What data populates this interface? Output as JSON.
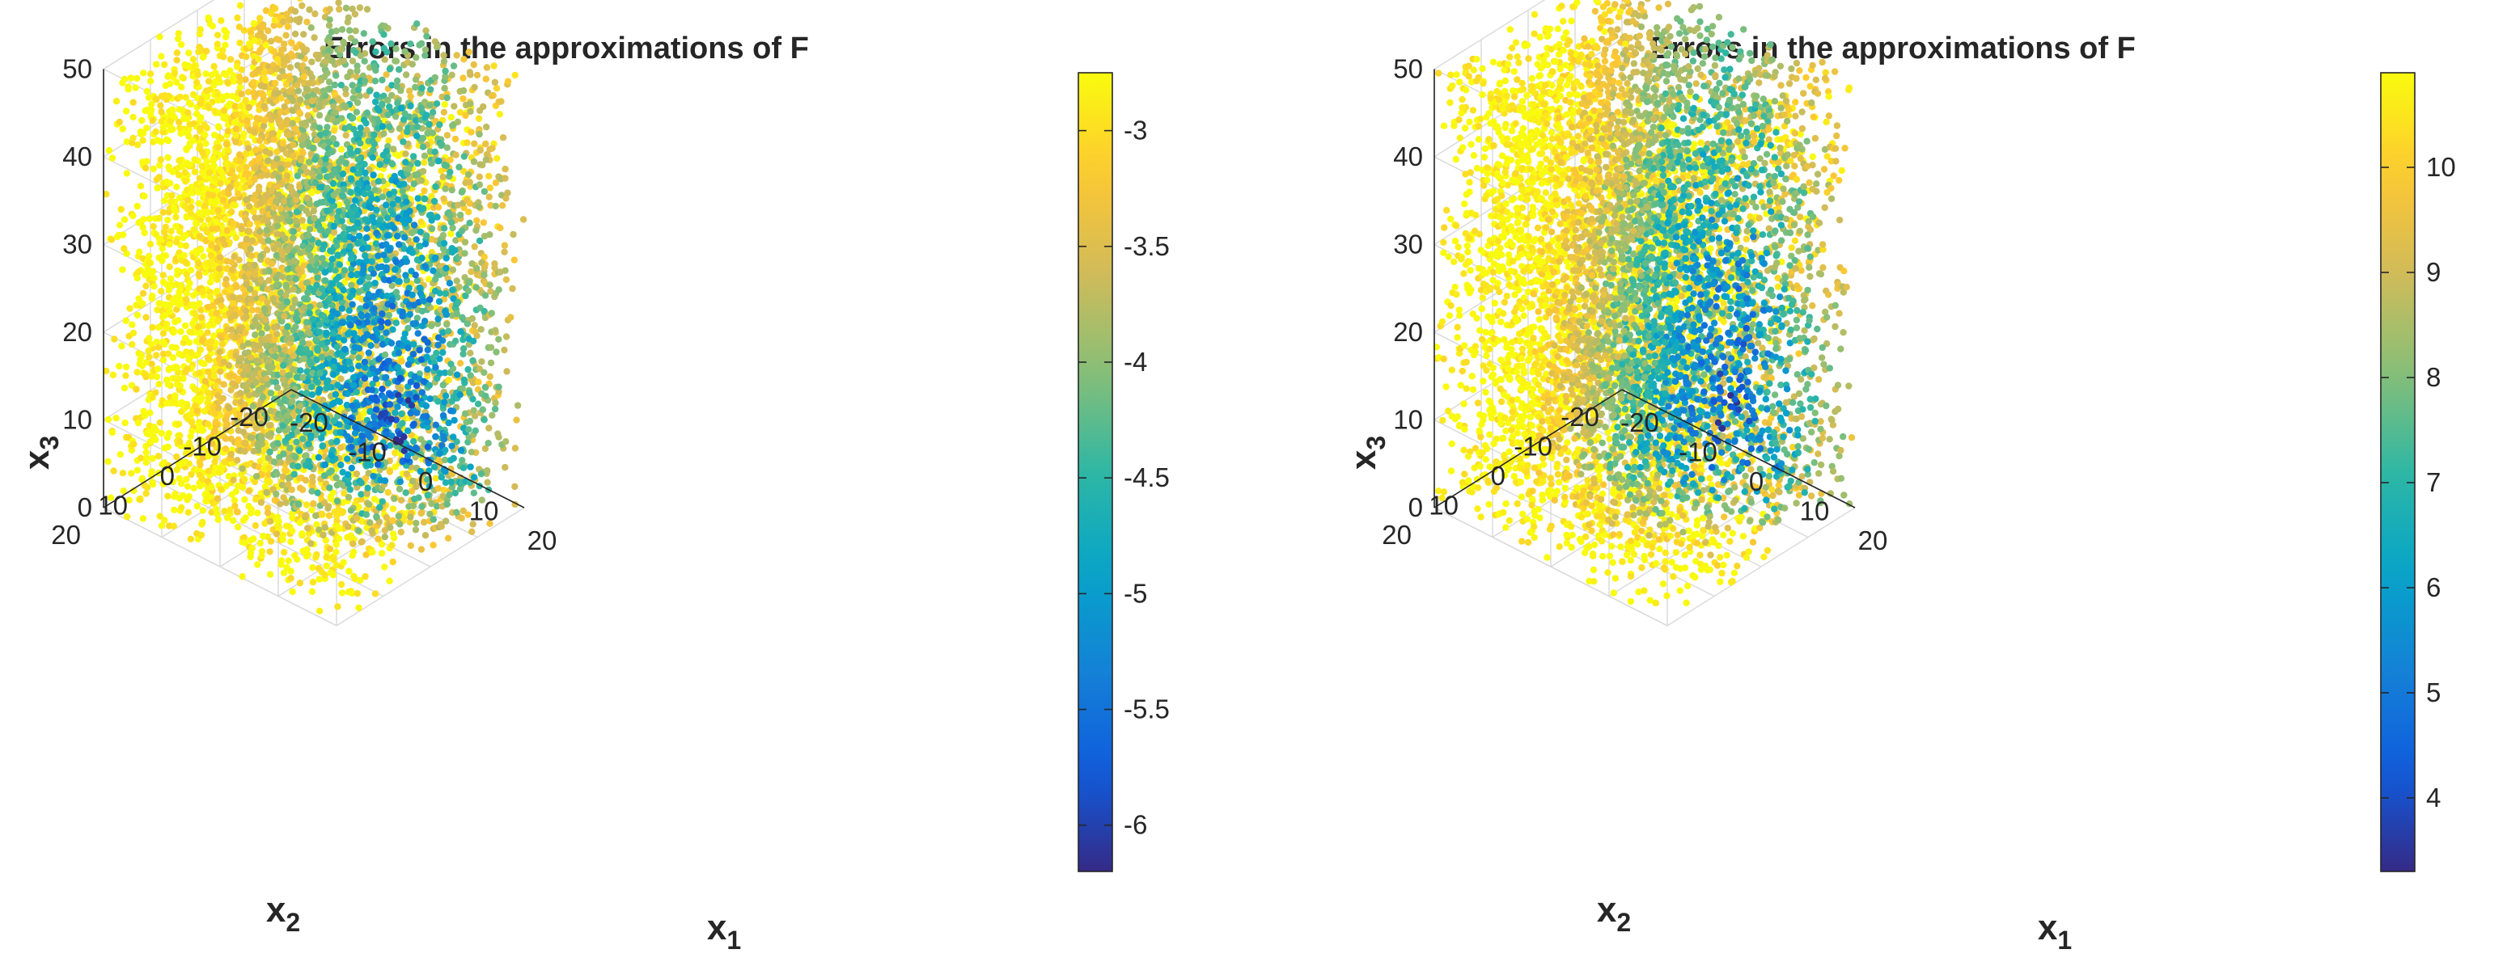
{
  "chart_data": [
    {
      "type": "scatter",
      "title": "Errors in the approximations of F",
      "xlabel": "x",
      "xlabel_sub": "1",
      "ylabel": "x",
      "ylabel_sub": "2",
      "zlabel": "x",
      "zlabel_sub": "3",
      "xlim": [
        -20,
        20
      ],
      "ylim": [
        -20,
        20
      ],
      "zlim": [
        0,
        50
      ],
      "x_ticks": [
        "-20",
        "-10",
        "0",
        "10",
        "20"
      ],
      "y_ticks": [
        "-20",
        "-10",
        "0",
        "10",
        "20"
      ],
      "z_ticks": [
        "0",
        "10",
        "20",
        "30",
        "40",
        "50"
      ],
      "grid": true,
      "colorbar": {
        "colormap": "parula",
        "limits": [
          -6.2,
          -2.75
        ],
        "ticks": [
          "-3",
          "-3.5",
          "-4",
          "-4.5",
          "-5",
          "-5.5",
          "-6"
        ]
      },
      "points": {
        "count": 7000,
        "x_range": [
          -20,
          20
        ],
        "y_range": [
          -20,
          20
        ],
        "z_range": [
          0,
          50
        ],
        "lowest_error_near": {
          "x1": 0,
          "x2": -20,
          "x3": 0
        },
        "highest_error_regions": "outer shell of the cube, strongest toward x1 = 20 and x2 = 20, mid-to-upper x3"
      }
    },
    {
      "type": "scatter",
      "title": "Errors in the approximations of F",
      "xlabel": "x",
      "xlabel_sub": "1",
      "ylabel": "x",
      "ylabel_sub": "2",
      "zlabel": "x",
      "zlabel_sub": "3",
      "xlim": [
        -20,
        20
      ],
      "ylim": [
        -20,
        20
      ],
      "zlim": [
        0,
        50
      ],
      "x_ticks": [
        "-20",
        "-10",
        "0",
        "10",
        "20"
      ],
      "y_ticks": [
        "-20",
        "-10",
        "0",
        "10",
        "20"
      ],
      "z_ticks": [
        "0",
        "10",
        "20",
        "30",
        "40",
        "50"
      ],
      "grid": true,
      "colorbar": {
        "colormap": "parula",
        "limits": [
          3.3,
          10.9
        ],
        "ticks": [
          "4",
          "5",
          "6",
          "7",
          "8",
          "9",
          "10"
        ]
      },
      "points": {
        "count": 7000,
        "x_range": [
          -20,
          20
        ],
        "y_range": [
          -20,
          20
        ],
        "z_range": [
          0,
          50
        ],
        "lowest_error_near": {
          "x1": 0,
          "x2": -20,
          "x3": 0
        },
        "highest_error_regions": "upper back region near x1 = 20, x2 = 20, x3 = 35 and the cube edges"
      }
    }
  ],
  "colors": {
    "parula": [
      "#352a87",
      "#0f5cdd",
      "#1481d6",
      "#06a4ca",
      "#2eb7a4",
      "#87bf77",
      "#d1bb59",
      "#fec832",
      "#f9fb0e"
    ],
    "grid": "#d9d9d9",
    "axis": "#262626"
  }
}
